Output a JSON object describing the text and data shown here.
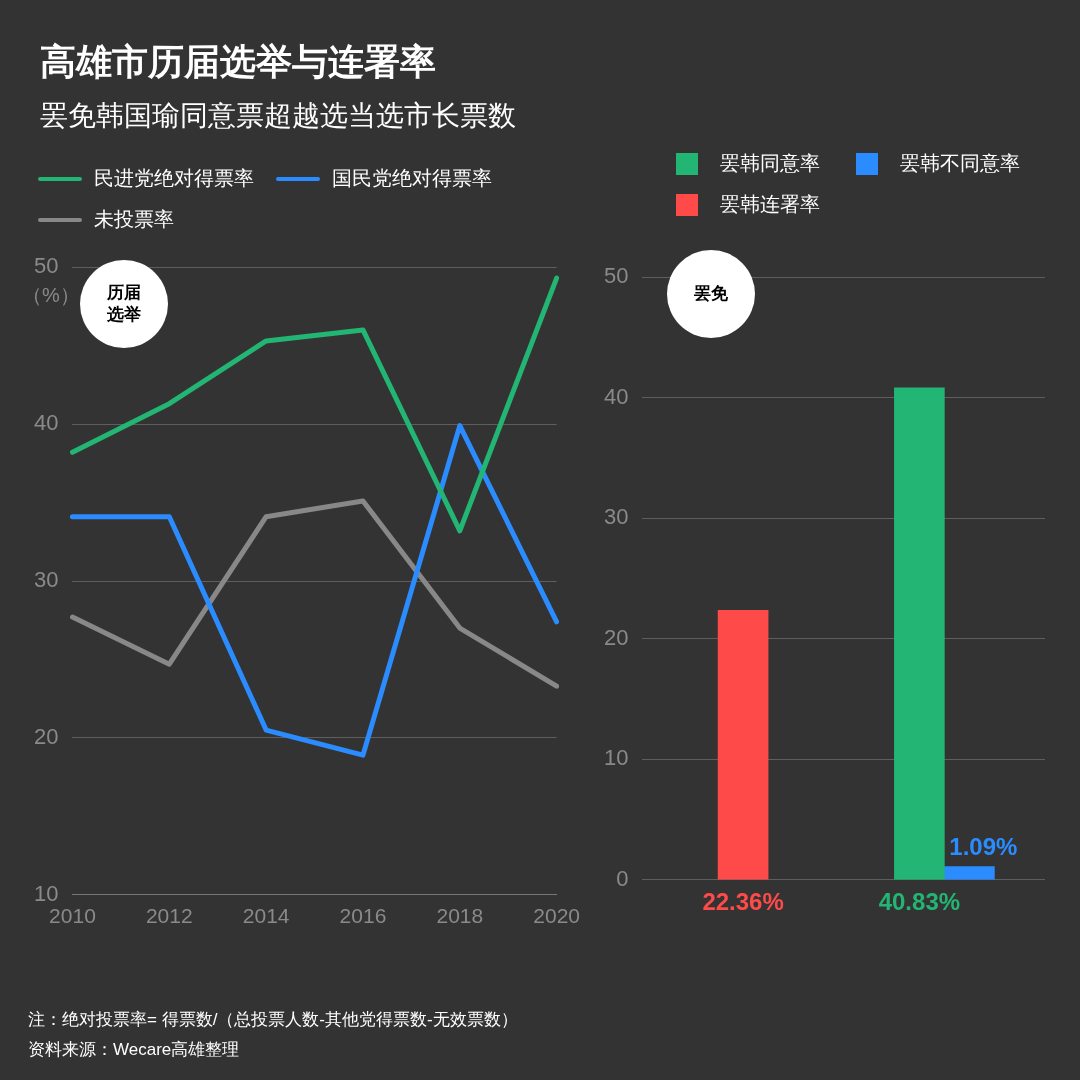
{
  "chart_data": [
    {
      "type": "line",
      "title": "高雄市历届选举与连署率",
      "subtitle": "罢免韩国瑜同意票超越选当选市长票数",
      "ylabel": "（%）",
      "annotations": [
        "历届选举",
        "注：绝对投票率= 得票数/（总投票人数-其他党得票数-无效票数）",
        "资料来源：Wecare高雄整理"
      ],
      "categories": [
        "2010",
        "2012",
        "2014",
        "2016",
        "2018",
        "2020"
      ],
      "series": [
        {
          "name": "民进党绝对得票率",
          "color": "#22b573",
          "values": [
            38.2,
            41.3,
            45.3,
            46.0,
            33.2,
            49.3
          ]
        },
        {
          "name": "国民党绝对得票率",
          "color": "#2b8cff",
          "values": [
            34.1,
            34.1,
            20.5,
            18.9,
            39.9,
            27.4
          ]
        },
        {
          "name": "未投票率",
          "color": "#888888",
          "values": [
            27.7,
            24.7,
            34.1,
            35.1,
            27.0,
            23.3
          ]
        }
      ],
      "ylim": [
        10,
        50
      ],
      "yticks": [
        10,
        20,
        30,
        40,
        50
      ],
      "grid": "y",
      "legend": "top left",
      "marker": "none",
      "line_style": "solid"
    },
    {
      "type": "bar",
      "title": "罢免",
      "categories": [
        null,
        null
      ],
      "series": [
        {
          "name": "罢韩同意率",
          "color": "#22b573",
          "values": [
            null,
            40.83
          ],
          "value_labels": [
            null,
            "40.83%"
          ]
        },
        {
          "name": "罢韩不同意率",
          "color": "#2b8cff",
          "values": [
            null,
            1.09
          ],
          "value_labels": [
            null,
            "1.09%"
          ]
        },
        {
          "name": "罢韩连署率",
          "color": "#ff4a4a",
          "values": [
            22.36,
            null
          ],
          "value_labels": [
            "22.36%",
            null
          ]
        }
      ],
      "ylim": [
        0,
        50
      ],
      "yticks": [
        0,
        10,
        20,
        30,
        40,
        50
      ],
      "grid": "y",
      "legend": "top"
    }
  ]
}
